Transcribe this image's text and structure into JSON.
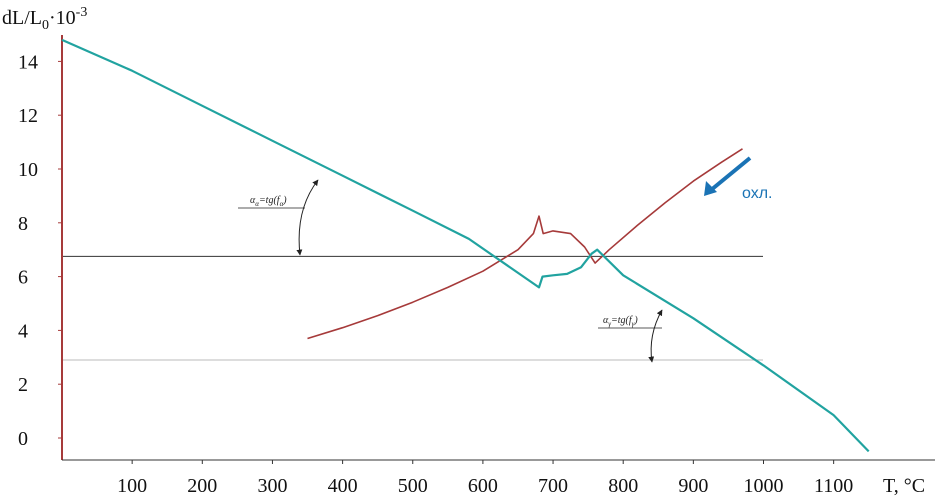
{
  "chart_data": {
    "type": "line",
    "ylabel_parts": {
      "base": "dL/L",
      "sub": "0",
      "sep": "·",
      "ten": "10",
      "exp": "-3"
    },
    "xlabel": "T, °C",
    "x_ticks": [
      "100",
      "200",
      "300",
      "400",
      "500",
      "600",
      "700",
      "800",
      "900",
      "1000",
      "1100"
    ],
    "y_ticks": [
      "0",
      "2",
      "4",
      "6",
      "8",
      "10",
      "12",
      "14"
    ],
    "xlim": [
      0,
      1200
    ],
    "ylim": [
      -0.8,
      15
    ],
    "series": [
      {
        "color": "#a63a3a",
        "points": [
          [
            350,
            3.7
          ],
          [
            400,
            4.1
          ],
          [
            450,
            4.55
          ],
          [
            500,
            5.05
          ],
          [
            550,
            5.6
          ],
          [
            600,
            6.2
          ],
          [
            650,
            7.0
          ],
          [
            672,
            7.6
          ],
          [
            680,
            8.25
          ],
          [
            686,
            7.6
          ],
          [
            700,
            7.7
          ],
          [
            725,
            7.6
          ],
          [
            745,
            7.1
          ],
          [
            760,
            6.5
          ],
          [
            780,
            7.0
          ],
          [
            820,
            7.9
          ],
          [
            860,
            8.75
          ],
          [
            900,
            9.55
          ],
          [
            940,
            10.25
          ],
          [
            970,
            10.75
          ]
        ]
      },
      {
        "color": "#21a3a0",
        "points": [
          [
            0,
            14.8
          ],
          [
            100,
            13.65
          ],
          [
            200,
            12.35
          ],
          [
            300,
            11.05
          ],
          [
            400,
            9.75
          ],
          [
            500,
            8.45
          ],
          [
            580,
            7.4
          ],
          [
            680,
            5.6
          ],
          [
            685,
            6.0
          ],
          [
            700,
            6.05
          ],
          [
            720,
            6.1
          ],
          [
            740,
            6.35
          ],
          [
            755,
            6.85
          ],
          [
            763,
            7.0
          ],
          [
            800,
            6.05
          ],
          [
            900,
            4.45
          ],
          [
            1000,
            2.7
          ],
          [
            1100,
            0.85
          ],
          [
            1150,
            -0.5
          ]
        ]
      }
    ],
    "reference_lines": [
      {
        "y": 6.75,
        "color": "#333333"
      },
      {
        "y": 2.9,
        "color": "#bbbbbb"
      }
    ],
    "annotations": [
      {
        "text": "α_α=tg(f_α)",
        "x_data": 235,
        "y_data": 9.4
      },
      {
        "text": "α_γ=tg(f_γ)",
        "x_data": 820,
        "y_data": 4.1
      }
    ],
    "cooling_label": "охл.",
    "cooling_color": "#1a73b5"
  }
}
